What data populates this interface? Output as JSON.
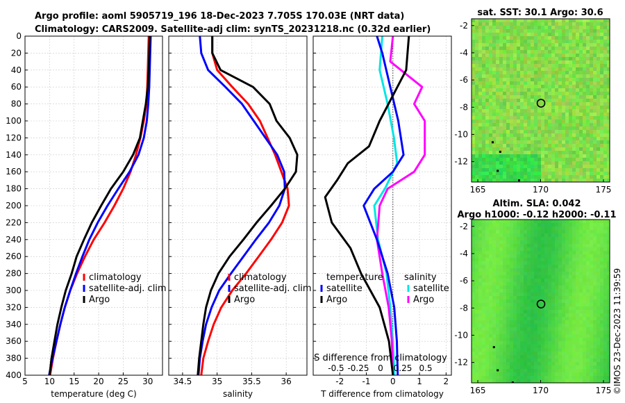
{
  "title_line1": "Argo profile: aoml 5905719_196 18-Dec-2023 7.705S 170.03E (NRT data)",
  "title_line2": "Climatology: CARS2009. Satellite-adj clim: synTS_20231218.nc (0.32d earlier)",
  "colors": {
    "climatology": "#ff0000",
    "satellite": "#0000ff",
    "argo": "#000000",
    "sal_clim": "#00e5e5",
    "sal_diff": "#ff00ff",
    "sst_map": "#77e04a",
    "sla_map": "#3dd04a"
  },
  "depth_ticks": [
    "0",
    "20",
    "40",
    "60",
    "80",
    "100",
    "120",
    "140",
    "160",
    "180",
    "200",
    "220",
    "240",
    "260",
    "280",
    "300",
    "320",
    "340",
    "360",
    "380",
    "400"
  ],
  "chart_data": [
    {
      "type": "line",
      "xlabel": "temperature (deg C)",
      "ylabel": "depth",
      "xlim": [
        5,
        33
      ],
      "ylim": [
        400,
        0
      ],
      "xticks": [
        "5",
        "10",
        "15",
        "20",
        "25",
        "30"
      ],
      "legend": [
        "climatology",
        "satellite-adj. clim",
        "Argo"
      ],
      "series": [
        {
          "name": "climatology",
          "points": [
            [
              30.2,
              0
            ],
            [
              30.1,
              20
            ],
            [
              30,
              40
            ],
            [
              29.9,
              60
            ],
            [
              29.7,
              80
            ],
            [
              29.2,
              100
            ],
            [
              28.5,
              120
            ],
            [
              27.6,
              140
            ],
            [
              26.5,
              160
            ],
            [
              25,
              180
            ],
            [
              23.2,
              200
            ],
            [
              21.2,
              220
            ],
            [
              19,
              240
            ],
            [
              17.2,
              260
            ],
            [
              15.6,
              280
            ],
            [
              14.2,
              300
            ],
            [
              13.1,
              320
            ],
            [
              12.2,
              340
            ],
            [
              11.4,
              360
            ],
            [
              10.7,
              380
            ],
            [
              10.1,
              400
            ]
          ]
        },
        {
          "name": "satellite-adj. clim",
          "points": [
            [
              30.6,
              0
            ],
            [
              30.5,
              20
            ],
            [
              30.4,
              40
            ],
            [
              30.3,
              60
            ],
            [
              30.1,
              80
            ],
            [
              29.8,
              100
            ],
            [
              29.2,
              120
            ],
            [
              28.1,
              140
            ],
            [
              26.3,
              160
            ],
            [
              24,
              180
            ],
            [
              21.8,
              200
            ],
            [
              19.8,
              220
            ],
            [
              18.1,
              240
            ],
            [
              16.7,
              260
            ],
            [
              15.4,
              280
            ],
            [
              14.2,
              300
            ],
            [
              13.1,
              320
            ],
            [
              12.2,
              340
            ],
            [
              11.4,
              360
            ],
            [
              10.6,
              380
            ],
            [
              9.9,
              400
            ]
          ]
        },
        {
          "name": "Argo",
          "points": [
            [
              30.4,
              0
            ],
            [
              30.3,
              20
            ],
            [
              30.2,
              40
            ],
            [
              30,
              60
            ],
            [
              29.6,
              80
            ],
            [
              29,
              100
            ],
            [
              28.4,
              120
            ],
            [
              27,
              140
            ],
            [
              25,
              160
            ],
            [
              22.5,
              180
            ],
            [
              20.5,
              200
            ],
            [
              18.6,
              220
            ],
            [
              17,
              240
            ],
            [
              15.5,
              260
            ],
            [
              14.5,
              280
            ],
            [
              13.3,
              300
            ],
            [
              12.4,
              320
            ],
            [
              11.6,
              340
            ],
            [
              11,
              360
            ],
            [
              10.4,
              380
            ],
            [
              10,
              400
            ]
          ]
        }
      ]
    },
    {
      "type": "line",
      "xlabel": "salinity",
      "ylabel": "depth",
      "xlim": [
        34.3,
        36.3
      ],
      "ylim": [
        400,
        0
      ],
      "xticks": [
        "34.5",
        "35",
        "35.5",
        "36"
      ],
      "legend": [
        "climatology",
        "satellite-adj. clim",
        "Argo"
      ],
      "series": [
        {
          "name": "climatology",
          "points": [
            [
              34.93,
              0
            ],
            [
              34.93,
              20
            ],
            [
              35.0,
              40
            ],
            [
              35.22,
              60
            ],
            [
              35.45,
              80
            ],
            [
              35.62,
              100
            ],
            [
              35.73,
              120
            ],
            [
              35.84,
              140
            ],
            [
              35.93,
              160
            ],
            [
              36.02,
              180
            ],
            [
              36.04,
              200
            ],
            [
              35.94,
              220
            ],
            [
              35.78,
              240
            ],
            [
              35.6,
              260
            ],
            [
              35.42,
              280
            ],
            [
              35.22,
              300
            ],
            [
              35.06,
              320
            ],
            [
              34.95,
              340
            ],
            [
              34.87,
              360
            ],
            [
              34.8,
              380
            ],
            [
              34.77,
              400
            ]
          ]
        },
        {
          "name": "satellite-adj. clim",
          "points": [
            [
              34.75,
              0
            ],
            [
              34.77,
              20
            ],
            [
              34.87,
              40
            ],
            [
              35.12,
              60
            ],
            [
              35.36,
              80
            ],
            [
              35.53,
              100
            ],
            [
              35.7,
              120
            ],
            [
              35.87,
              140
            ],
            [
              35.97,
              160
            ],
            [
              35.98,
              180
            ],
            [
              35.9,
              200
            ],
            [
              35.75,
              220
            ],
            [
              35.56,
              240
            ],
            [
              35.38,
              260
            ],
            [
              35.2,
              280
            ],
            [
              35.03,
              300
            ],
            [
              34.92,
              320
            ],
            [
              34.84,
              340
            ],
            [
              34.79,
              360
            ],
            [
              34.75,
              380
            ],
            [
              34.73,
              400
            ]
          ]
        },
        {
          "name": "Argo",
          "points": [
            [
              34.93,
              0
            ],
            [
              34.93,
              20
            ],
            [
              35.05,
              40
            ],
            [
              35.52,
              60
            ],
            [
              35.76,
              80
            ],
            [
              35.86,
              100
            ],
            [
              36.05,
              120
            ],
            [
              36.16,
              140
            ],
            [
              36.14,
              160
            ],
            [
              35.98,
              180
            ],
            [
              35.78,
              200
            ],
            [
              35.57,
              220
            ],
            [
              35.38,
              240
            ],
            [
              35.18,
              260
            ],
            [
              35.02,
              280
            ],
            [
              34.91,
              300
            ],
            [
              34.84,
              320
            ],
            [
              34.8,
              340
            ],
            [
              34.77,
              360
            ],
            [
              34.74,
              380
            ],
            [
              34.72,
              400
            ]
          ]
        }
      ]
    },
    {
      "type": "line",
      "xlabel": "T difference from climatology",
      "x2label": "S difference from climatology",
      "ylabel": "depth",
      "xlim": [
        -3,
        2.2
      ],
      "ylim": [
        400,
        0
      ],
      "xticks": [
        "-2",
        "-1",
        "0",
        "1",
        "2"
      ],
      "x2ticks": [
        "-0.5",
        "-0.25",
        "0",
        "0.25",
        "0.5"
      ],
      "legend_temperature": "temperature",
      "legend_salinity": "salinity",
      "legend_temp_entries": [
        "satellite",
        "Argo"
      ],
      "legend_sal_entries": [
        "satellite",
        "Argo"
      ],
      "series": [
        {
          "name": "T satellite",
          "points": [
            [
              -0.6,
              0
            ],
            [
              -0.4,
              20
            ],
            [
              -0.1,
              60
            ],
            [
              0.2,
              100
            ],
            [
              0.4,
              140
            ],
            [
              0,
              160
            ],
            [
              -0.7,
              180
            ],
            [
              -1.1,
              200
            ],
            [
              -0.6,
              240
            ],
            [
              -0.2,
              280
            ],
            [
              0.05,
              320
            ],
            [
              0.15,
              360
            ],
            [
              0.18,
              400
            ]
          ]
        },
        {
          "name": "T Argo",
          "points": [
            [
              0.6,
              0
            ],
            [
              0.5,
              40
            ],
            [
              0,
              70
            ],
            [
              -0.5,
              100
            ],
            [
              -0.9,
              130
            ],
            [
              -1.7,
              150
            ],
            [
              -2.1,
              170
            ],
            [
              -2.55,
              190
            ],
            [
              -2.3,
              220
            ],
            [
              -1.6,
              250
            ],
            [
              -1.2,
              280
            ],
            [
              -0.5,
              320
            ],
            [
              -0.15,
              360
            ],
            [
              0,
              400
            ]
          ]
        },
        {
          "name": "S satellite",
          "points": [
            [
              -0.2,
              0
            ],
            [
              -0.25,
              40
            ],
            [
              -0.1,
              80
            ],
            [
              0.02,
              120
            ],
            [
              0.08,
              150
            ],
            [
              -0.15,
              180
            ],
            [
              -0.35,
              200
            ],
            [
              -0.28,
              240
            ],
            [
              -0.12,
              280
            ],
            [
              -0.05,
              320
            ],
            [
              0,
              360
            ],
            [
              0.03,
              400
            ]
          ]
        },
        {
          "name": "S Argo",
          "points": [
            [
              0,
              0
            ],
            [
              -0.05,
              30
            ],
            [
              0.55,
              60
            ],
            [
              0.4,
              80
            ],
            [
              0.6,
              100
            ],
            [
              0.6,
              140
            ],
            [
              0.4,
              160
            ],
            [
              -0.1,
              180
            ],
            [
              -0.25,
              200
            ],
            [
              -0.3,
              240
            ],
            [
              -0.2,
              280
            ],
            [
              -0.08,
              320
            ],
            [
              -0.02,
              360
            ],
            [
              0,
              400
            ]
          ]
        }
      ]
    },
    {
      "type": "heatmap",
      "title": "sat. SST: 30.1 Argo: 30.6",
      "xlim": [
        164.5,
        175.5
      ],
      "ylim": [
        -13.5,
        -1.5
      ],
      "xticks": [
        "165",
        "170",
        "175"
      ],
      "yticks": [
        "-2",
        "-4",
        "-6",
        "-8",
        "-10",
        "-12"
      ],
      "marker": {
        "lon": 170.03,
        "lat": -7.705
      }
    },
    {
      "type": "heatmap",
      "title_line1": "Altim. SLA: 0.042",
      "title_line2": "Argo h1000: -0.12 h2000: -0.11",
      "xlim": [
        164.5,
        175.5
      ],
      "ylim": [
        -13.5,
        -1.5
      ],
      "xticks": [
        "165",
        "170",
        "175"
      ],
      "yticks": [
        "-2",
        "-4",
        "-6",
        "-8",
        "-10",
        "-12"
      ],
      "marker": {
        "lon": 170.03,
        "lat": -7.705
      }
    }
  ],
  "credit": "©IMOS 23-Dec-2023 11:39:59"
}
